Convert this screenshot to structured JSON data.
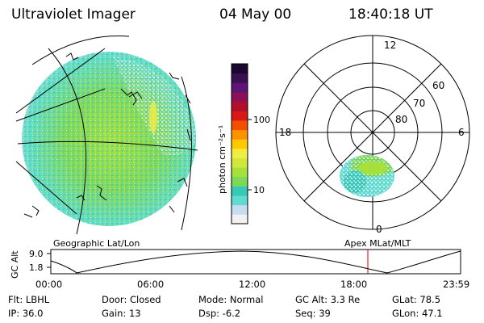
{
  "header": {
    "instrument": "Ultraviolet Imager",
    "date": "04 May 00",
    "time": "18:40:18 UT"
  },
  "left_panel_label": "Geographic Lat/Lon",
  "right_panel_label": "Apex MLat/MLT",
  "colorbar": {
    "unit": "photon cm⁻²s⁻¹",
    "tick_100": "100",
    "tick_10": "10",
    "colors": [
      "#f2f2f2",
      "#c8dcf0",
      "#5fdccf",
      "#38c8b8",
      "#7ed858",
      "#a6e03c",
      "#d0e83a",
      "#f2ec42",
      "#ffc800",
      "#ff9000",
      "#f25000",
      "#d81818",
      "#b0102c",
      "#8a1058",
      "#5e1478",
      "#3a1050",
      "#1a0830"
    ]
  },
  "polar": {
    "rings": [
      "60",
      "70",
      "80"
    ],
    "mlt_top": "12",
    "mlt_left": "18",
    "mlt_right": "6",
    "mlt_bottom": "0"
  },
  "altitude_plot": {
    "ylabel": "GC Alt",
    "yticks": [
      "9.0",
      "1.8"
    ],
    "times": [
      "00:00",
      "06:00",
      "12:00",
      "18:00",
      "23:59"
    ],
    "marker_color": "#d00000"
  },
  "footer": {
    "flt": "Flt: LBHL",
    "ip": "IP: 36.0",
    "door": "Door: Closed",
    "gain": "Gain: 13",
    "mode": "Mode: Normal",
    "dsp": "Dsp:    -6.2",
    "gcalt": "GC Alt: 3.3 Re",
    "seq": "Seq: 39",
    "glat": "GLat:  78.5",
    "glon": "GLon:  47.1"
  }
}
